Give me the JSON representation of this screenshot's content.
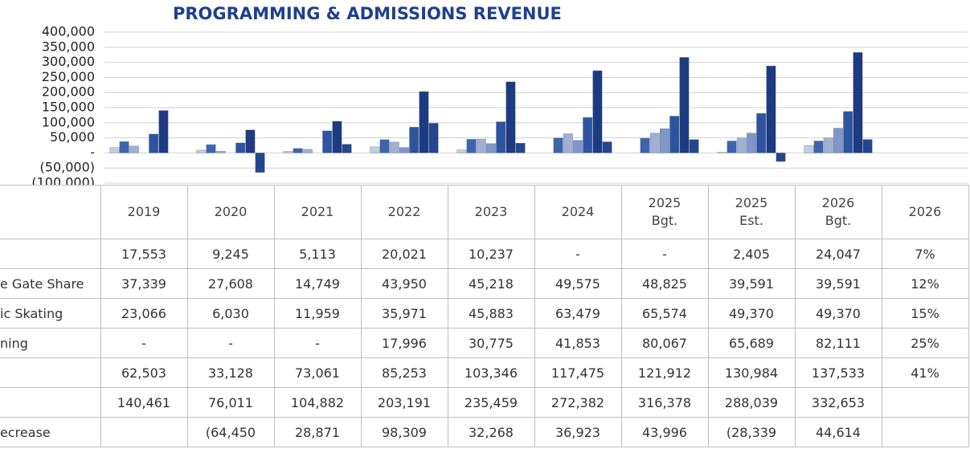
{
  "chart_data": {
    "type": "bar",
    "title": "PROGRAMMING & ADMISSIONS REVENUE",
    "categories": [
      "2019",
      "2020",
      "2021",
      "2022",
      "2023",
      "2024",
      "2025 Bgt.",
      "2025 Est.",
      "2026 Bgt."
    ],
    "ylim": [
      -100000,
      400000
    ],
    "yticks": [
      {
        "value": 400000,
        "label": "400,000"
      },
      {
        "value": 350000,
        "label": "350,000"
      },
      {
        "value": 300000,
        "label": "300,000"
      },
      {
        "value": 250000,
        "label": "250,000"
      },
      {
        "value": 200000,
        "label": "200,000"
      },
      {
        "value": 150000,
        "label": "150,000"
      },
      {
        "value": 100000,
        "label": "100,000"
      },
      {
        "value": 50000,
        "label": "50,000"
      },
      {
        "value": 0,
        "label": "-"
      },
      {
        "value": -50000,
        "label": "(50,000)"
      },
      {
        "value": -100000,
        "label": "(100,000)"
      }
    ],
    "grid": true,
    "series": [
      {
        "name": null,
        "color": "#c3cde0",
        "values": [
          17553,
          9245,
          5113,
          20021,
          10237,
          0,
          0,
          2405,
          24047
        ],
        "value_labels": [
          "17,553",
          "9,245",
          "5,113",
          "20,021",
          "10,237",
          "-",
          "-",
          "2,405",
          "24,047"
        ]
      },
      {
        "name": "e Gate Share",
        "color": "#3f64ad",
        "values": [
          37339,
          27608,
          14749,
          43950,
          45218,
          49575,
          48825,
          39591,
          39591
        ],
        "value_labels": [
          "37,339",
          "27,608",
          "14,749",
          "43,950",
          "45,218",
          "49,575",
          "48,825",
          "39,591",
          "39,591"
        ]
      },
      {
        "name": "ic Skating",
        "color": "#9fb0d3",
        "values": [
          23066,
          6030,
          11959,
          35971,
          45883,
          63479,
          65574,
          49370,
          49370
        ],
        "value_labels": [
          "23,066",
          "6,030",
          "11,959",
          "35,971",
          "45,883",
          "63,479",
          "65,574",
          "49,370",
          "49,370"
        ]
      },
      {
        "name": "ning",
        "color": "#7f96c6",
        "values": [
          0,
          0,
          0,
          17996,
          30775,
          41853,
          80067,
          65689,
          82111
        ],
        "value_labels": [
          "-",
          "-",
          "-",
          "17,996",
          "30,775",
          "41,853",
          "80,067",
          "65,689",
          "82,111"
        ]
      },
      {
        "name": null,
        "color": "#2e54a0",
        "values": [
          62503,
          33128,
          73061,
          85253,
          103346,
          117475,
          121912,
          130984,
          137533
        ],
        "value_labels": [
          "62,503",
          "33,128",
          "73,061",
          "85,253",
          "103,346",
          "117,475",
          "121,912",
          "130,984",
          "137,533"
        ]
      },
      {
        "name": null,
        "color": "#1d3b80",
        "values": [
          140461,
          76011,
          104882,
          203191,
          235459,
          272382,
          316378,
          288039,
          332653
        ],
        "value_labels": [
          "140,461",
          "76,011",
          "104,882",
          "203,191",
          "235,459",
          "272,382",
          "316,378",
          "288,039",
          "332,653"
        ]
      },
      {
        "name": "ecrease",
        "color": "#24468c",
        "values": [
          null,
          -64450,
          28871,
          98309,
          32268,
          36923,
          43996,
          -28339,
          44614
        ],
        "value_labels": [
          null,
          "(64,450",
          "28,871",
          "98,309",
          "32,268",
          "36,923",
          "43,996",
          "(28,339",
          "44,614"
        ]
      }
    ],
    "share_column": {
      "header": "2026",
      "values": [
        7,
        12,
        15,
        25,
        41
      ],
      "value_labels": [
        "7%",
        "12%",
        "15%",
        "25%",
        "41%"
      ]
    }
  }
}
